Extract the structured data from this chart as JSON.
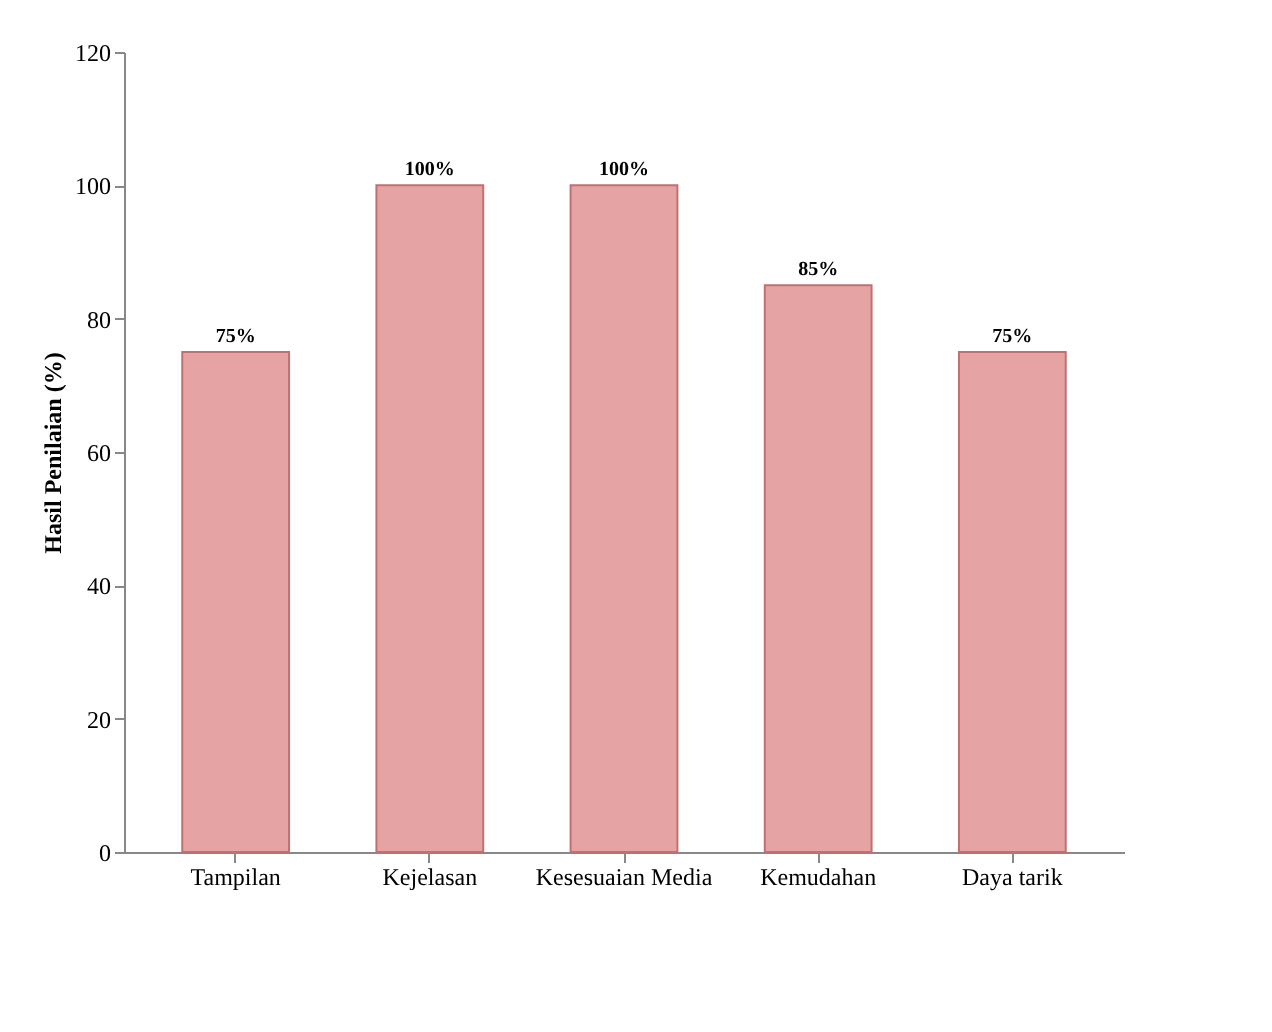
{
  "chart_data": {
    "type": "bar",
    "ylabel": "Hasil Penilaian (%)",
    "categories": [
      "Tampilan",
      "Kejelasan",
      "Kesesuaian Media",
      "Kemudahan",
      "Daya tarik"
    ],
    "values": [
      75,
      100,
      100,
      85,
      75
    ],
    "value_labels": [
      "75%",
      "100%",
      "100%",
      "85%",
      "75%"
    ],
    "color": "#e6a3a3",
    "ylim": [
      0,
      120
    ],
    "yticks": [
      0,
      20,
      40,
      60,
      80,
      100,
      120
    ],
    "grid": false
  }
}
